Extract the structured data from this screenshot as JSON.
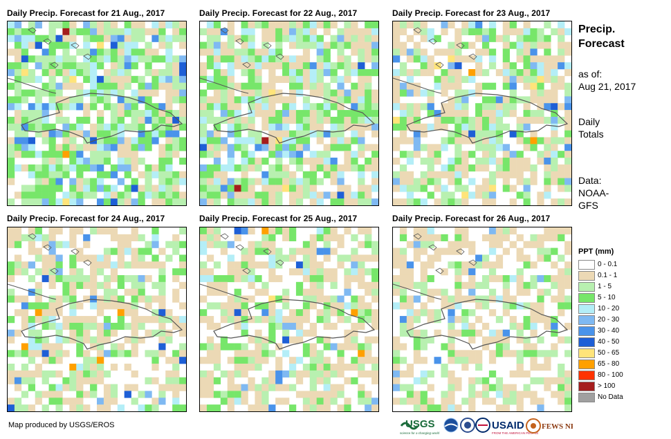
{
  "panels": [
    {
      "title": "Daily Precip. Forecast for 21 Aug., 2017",
      "date_label": "21 Aug., 2017"
    },
    {
      "title": "Daily Precip. Forecast for 22 Aug., 2017",
      "date_label": "22 Aug., 2017"
    },
    {
      "title": "Daily Precip. Forecast for 23 Aug., 2017",
      "date_label": "23 Aug., 2017"
    },
    {
      "title": "Daily Precip. Forecast for 24 Aug., 2017",
      "date_label": "24 Aug., 2017"
    },
    {
      "title": "Daily Precip. Forecast for 25 Aug., 2017",
      "date_label": "25 Aug., 2017"
    },
    {
      "title": "Daily Precip. Forecast for 26 Aug., 2017",
      "date_label": "26 Aug., 2017"
    }
  ],
  "sidebar": {
    "title_line1": "Precip.",
    "title_line2": "Forecast",
    "asof_label": "as of:",
    "asof_date": "Aug 21, 2017",
    "totals_line1": "Daily",
    "totals_line2": "Totals",
    "data_line1": "Data:",
    "data_line2": "NOAA-",
    "data_line3": "GFS"
  },
  "legend": {
    "title": "PPT (mm)",
    "items": [
      {
        "label": "0 - 0.1",
        "color": "#ffffff"
      },
      {
        "label": "0.1 - 1",
        "color": "#ecd9b5"
      },
      {
        "label": "1 - 5",
        "color": "#b8f0b0"
      },
      {
        "label": "5 - 10",
        "color": "#77e66a"
      },
      {
        "label": "10 - 20",
        "color": "#b4eef7"
      },
      {
        "label": "20 - 30",
        "color": "#7fb9f2"
      },
      {
        "label": "30 - 40",
        "color": "#4a93ea"
      },
      {
        "label": "40 - 50",
        "color": "#1e5fd6"
      },
      {
        "label": "50 - 65",
        "color": "#ffe47a"
      },
      {
        "label": "65 - 80",
        "color": "#ffa000"
      },
      {
        "label": "80 - 100",
        "color": "#ff3300"
      },
      {
        "label": "> 100",
        "color": "#a51d1d"
      },
      {
        "label": "No Data",
        "color": "#a0a0a0"
      }
    ]
  },
  "credit": "Map produced by USGS/EROS",
  "logos": {
    "usgs": "USGS",
    "usgs_tagline": "science for a changing world",
    "usaid": "USAID",
    "usaid_tagline": "FROM THE AMERICAN PEOPLE",
    "fewsnet": "FEWS NET"
  }
}
